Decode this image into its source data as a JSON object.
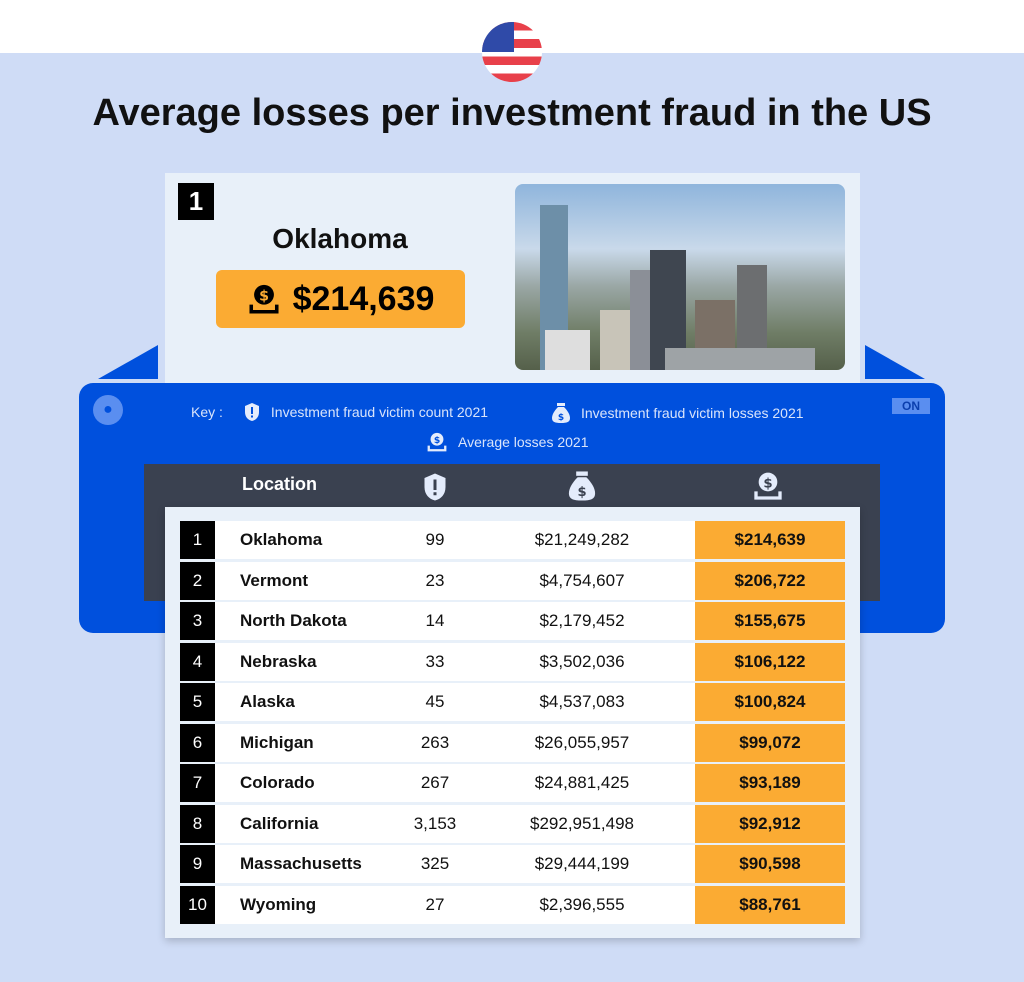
{
  "title": "Average losses per investment fraud in the US",
  "colors": {
    "background": "#cfdcf6",
    "panel": "#0050dd",
    "header": "#3a4150",
    "highlight": "#fbab33"
  },
  "feature": {
    "rank": "1",
    "name": "Oklahoma",
    "amount": "$214,639",
    "icon": "coin-hand-icon",
    "image": "city-skyline-photo"
  },
  "panel": {
    "key_label": "Key :",
    "toggle": "ON",
    "keys": [
      {
        "icon": "shield-exclamation-icon",
        "label": "Investment fraud victim count 2021"
      },
      {
        "icon": "money-bag-icon",
        "label": "Investment fraud victim losses 2021"
      },
      {
        "icon": "coin-hand-icon",
        "label": "Average losses 2021"
      }
    ]
  },
  "table": {
    "headers": [
      "Location",
      "shield-exclamation-icon",
      "money-bag-icon",
      "coin-hand-icon"
    ],
    "location_header": "Location",
    "rows": [
      {
        "rank": "1",
        "location": "Oklahoma",
        "count": "99",
        "losses": "$21,249,282",
        "average": "$214,639"
      },
      {
        "rank": "2",
        "location": "Vermont",
        "count": "23",
        "losses": "$4,754,607",
        "average": "$206,722"
      },
      {
        "rank": "3",
        "location": "North Dakota",
        "count": "14",
        "losses": "$2,179,452",
        "average": "$155,675"
      },
      {
        "rank": "4",
        "location": "Nebraska",
        "count": "33",
        "losses": "$3,502,036",
        "average": "$106,122"
      },
      {
        "rank": "5",
        "location": "Alaska",
        "count": "45",
        "losses": "$4,537,083",
        "average": "$100,824"
      },
      {
        "rank": "6",
        "location": "Michigan",
        "count": "263",
        "losses": "$26,055,957",
        "average": "$99,072"
      },
      {
        "rank": "7",
        "location": "Colorado",
        "count": "267",
        "losses": "$24,881,425",
        "average": "$93,189"
      },
      {
        "rank": "8",
        "location": "California",
        "count": "3,153",
        "losses": "$292,951,498",
        "average": "$92,912"
      },
      {
        "rank": "9",
        "location": "Massachusetts",
        "count": "325",
        "losses": "$29,444,199",
        "average": "$90,598"
      },
      {
        "rank": "10",
        "location": "Wyoming",
        "count": "27",
        "losses": "$2,396,555",
        "average": "$88,761"
      }
    ]
  }
}
